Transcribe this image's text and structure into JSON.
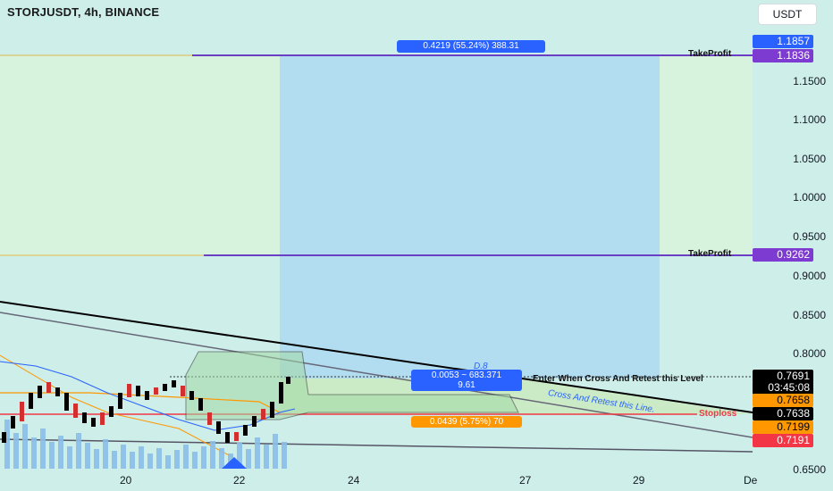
{
  "header": {
    "symbol_title": "STORJUSDT, 4h, BINANCE",
    "currency_button": "USDT"
  },
  "price_axis": {
    "labels": [
      "1.1500",
      "1.1000",
      "1.0500",
      "1.0000",
      "0.9500",
      "0.9000",
      "0.8500",
      "0.8000",
      "0.6500"
    ],
    "badges": {
      "high": "1.1857",
      "take_profit_1": "1.1836",
      "take_profit_2": "0.9262",
      "current": "0.7691",
      "countdown": "03:45:08",
      "level_a": "0.7658",
      "level_b": "0.7638",
      "level_c": "0.7199",
      "stoploss": "0.7191"
    }
  },
  "time_axis": {
    "labels": [
      "20",
      "22",
      "24",
      "27",
      "29",
      "De"
    ]
  },
  "annotations": {
    "take_profit_1": "TakeProfit",
    "take_profit_2": "TakeProfit",
    "stoploss": "Stoploss",
    "entry_text": "Enter When Cross And Retest this Level",
    "trend_text": "Cross And Retest this Line.",
    "small_text": "D.8",
    "profit_box": "0.4219 (55.24%) 388.31",
    "entry_box_line1": "0.0053 ~ 683.371",
    "entry_box_line2": "9.61",
    "loss_box": "0.0439 (5.75%) 70"
  },
  "colors": {
    "background": "#cdeee9",
    "profit_zone": "#b2dcef",
    "target_zone": "#d7f2dd",
    "take_profit_line": "#6a3fc4",
    "stoploss_line": "#f23645",
    "trendline": "#000000",
    "blue_badge": "#2962ff",
    "purple_badge": "#7e3bd1",
    "orange_badge": "#ff9800",
    "red_badge": "#f23645",
    "black_badge": "#000000"
  }
}
